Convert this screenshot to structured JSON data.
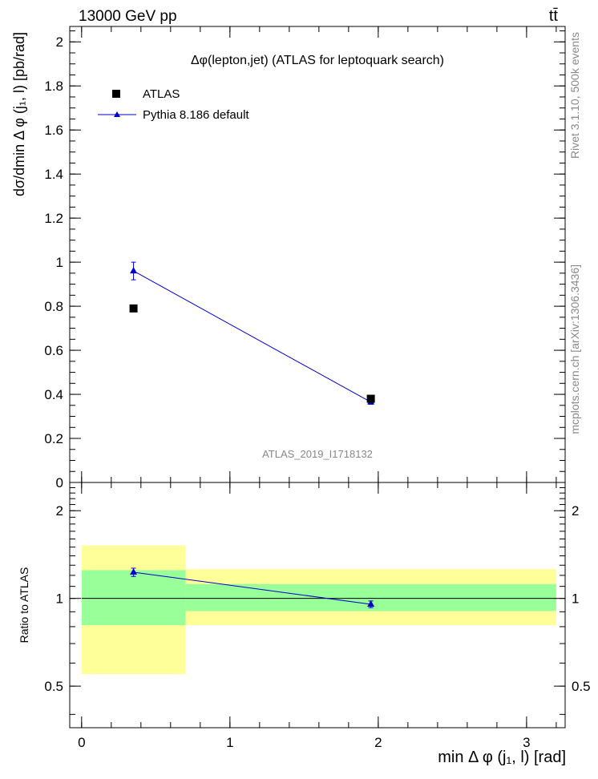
{
  "header": {
    "energy_label": "13000 GeV pp",
    "process_label": "tt̄"
  },
  "side_labels": {
    "rivet": "Rivet 3.1.10,  500k events",
    "mcplots": "mcplots.cern.ch [arXiv:1306.3436]"
  },
  "colors": {
    "atlas_marker": "#000000",
    "pythia": "#0000cc",
    "band_inner": "#99ff99",
    "band_outer": "#ffff99",
    "watermark": "#888888"
  },
  "chart_data": [
    {
      "type": "scatter",
      "title": "Δφ(lepton,jet) (ATLAS for leptoquark search)",
      "analysis_label": "ATLAS_2019_I1718132",
      "xlabel": "",
      "ylabel": "dσ/dmin Δ φ (j₁, l) [pb/rad]",
      "xlim": [
        -0.08,
        3.26
      ],
      "ylim": [
        0,
        2.07
      ],
      "y_ticks": [
        0,
        0.2,
        0.4,
        0.6,
        0.8,
        1,
        1.2,
        1.4,
        1.6,
        1.8,
        2
      ],
      "y_tick_labels": [
        "0",
        "0.2",
        "0.4",
        "0.6",
        "0.8",
        "1",
        "1.2",
        "1.4",
        "1.6",
        "1.8",
        "2"
      ],
      "legend_position": "top-left",
      "series": [
        {
          "name": "ATLAS",
          "marker": "square",
          "x": [
            0.35,
            1.95
          ],
          "y": [
            0.79,
            0.38
          ],
          "x_bins": [
            [
              0,
              0.7
            ],
            [
              0.7,
              3.2
            ]
          ]
        },
        {
          "name": "Pythia 8.186 default",
          "marker": "triangle",
          "line": true,
          "x": [
            0.35,
            1.95
          ],
          "y": [
            0.96,
            0.365
          ],
          "yerr": [
            0.04,
            0.01
          ]
        }
      ]
    },
    {
      "type": "line",
      "xlabel": "min Δ φ (j₁, l) [rad]",
      "ylabel": "Ratio to ATLAS",
      "xlim": [
        -0.08,
        3.26
      ],
      "ylim": [
        0.36,
        2.5
      ],
      "y_scale": "log",
      "y_ticks": [
        0.5,
        1,
        2
      ],
      "y_tick_labels": [
        "0.5",
        "1",
        "2"
      ],
      "x_ticks": [
        0,
        1,
        2,
        3
      ],
      "x_tick_labels": [
        "0",
        "1",
        "2",
        "3"
      ],
      "reference_line": 1,
      "bands": [
        {
          "x": [
            0,
            0.7
          ],
          "inner": [
            0.81,
            1.25
          ],
          "outer": [
            0.55,
            1.52
          ]
        },
        {
          "x": [
            0.7,
            3.2
          ],
          "inner": [
            0.905,
            1.12
          ],
          "outer": [
            0.81,
            1.26
          ]
        }
      ],
      "series": [
        {
          "name": "Pythia 8.186 default",
          "x": [
            0.35,
            1.95
          ],
          "y": [
            1.23,
            0.955
          ],
          "yerr": [
            0.04,
            0.025
          ]
        }
      ]
    }
  ]
}
